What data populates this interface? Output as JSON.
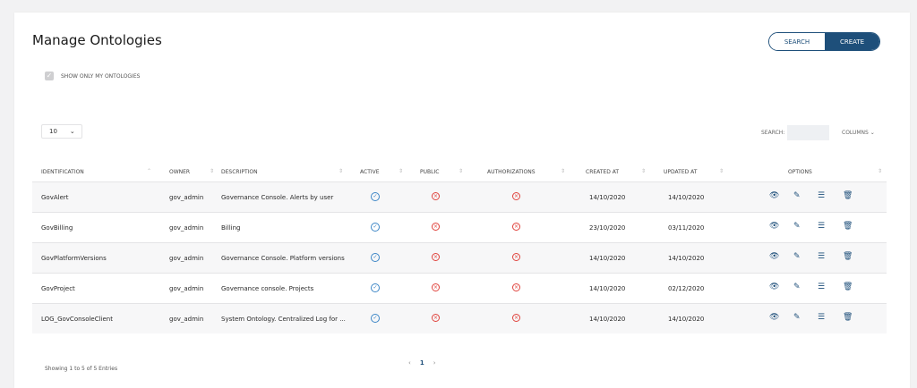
{
  "page": {
    "title": "Manage Ontologies"
  },
  "actions": {
    "search": "SEARCH",
    "create": "CREATE"
  },
  "filter": {
    "label": "SHOW ONLY MY ONTOLOGIES",
    "checked": true
  },
  "table_controls": {
    "page_size": "10",
    "search_label": "SEARCH:",
    "search_value": "",
    "columns_label": "COLUMNS ⌄"
  },
  "columns": [
    "IDENTIFICATION",
    "OWNER",
    "DESCRIPTION",
    "ACTIVE",
    "PUBLIC",
    "AUTHORIZATIONS",
    "CREATED AT",
    "UPDATED AT",
    "OPTIONS"
  ],
  "rows": [
    {
      "identification": "GovAlert",
      "owner": "gov_admin",
      "description": "Governance Console. Alerts by user",
      "active": true,
      "public": false,
      "authorizations": false,
      "created": "14/10/2020",
      "updated": "14/10/2020"
    },
    {
      "identification": "GovBilling",
      "owner": "gov_admin",
      "description": "Billing",
      "active": true,
      "public": false,
      "authorizations": false,
      "created": "23/10/2020",
      "updated": "03/11/2020"
    },
    {
      "identification": "GovPlatformVersions",
      "owner": "gov_admin",
      "description": "Governance Console. Platform versions",
      "active": true,
      "public": false,
      "authorizations": false,
      "created": "14/10/2020",
      "updated": "14/10/2020"
    },
    {
      "identification": "GovProject",
      "owner": "gov_admin",
      "description": "Governance console. Projects",
      "active": true,
      "public": false,
      "authorizations": false,
      "created": "14/10/2020",
      "updated": "02/12/2020"
    },
    {
      "identification": "LOG_GovConsoleClient",
      "owner": "gov_admin",
      "description": "System Ontology. Centralized Log for ...",
      "active": true,
      "public": false,
      "authorizations": false,
      "created": "14/10/2020",
      "updated": "14/10/2020"
    }
  ],
  "row_icons": [
    "eye-icon",
    "edit-icon",
    "list-icon",
    "trash-icon"
  ],
  "footer": {
    "showing": "Showing 1 to 5 of 5 Entries",
    "current_page": "1",
    "prev": "‹",
    "next": "›"
  },
  "colors": {
    "accent": "#1e4f7a",
    "active": "#3d86c6",
    "inactive": "#e0443e"
  }
}
